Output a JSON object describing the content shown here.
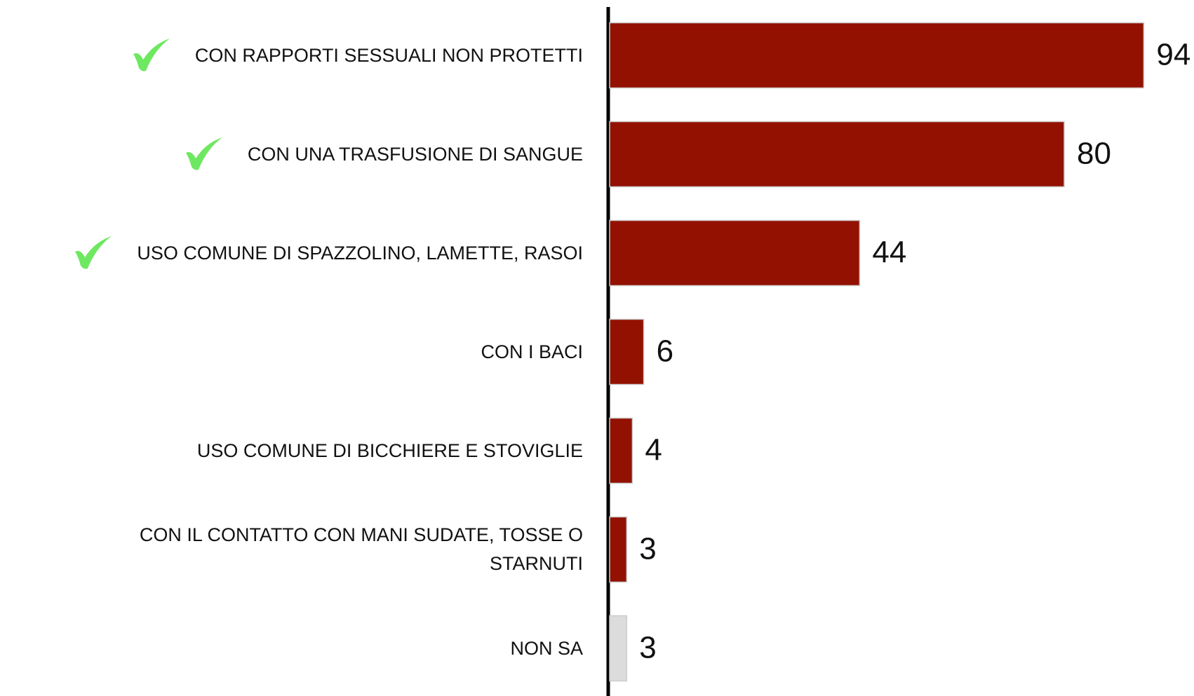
{
  "chart_data": {
    "type": "hbar",
    "categories": [
      "CON RAPPORTI SESSUALI NON PROTETTI",
      "CON UNA TRASFUSIONE DI SANGUE",
      "USO COMUNE DI SPAZZOLINO, LAMETTE, RASOI",
      "CON I BACI",
      "USO COMUNE DI BICCHIERE E STOVIGLIE",
      "CON IL CONTATTO CON MANI SUDATE, TOSSE O STARNUTI",
      "NON SA"
    ],
    "values": [
      94,
      80,
      44,
      6,
      4,
      3,
      3
    ],
    "colors": [
      "#931100",
      "#931100",
      "#931100",
      "#931100",
      "#931100",
      "#931100",
      "#dcdcdc"
    ],
    "checked": [
      true,
      true,
      true,
      false,
      false,
      false,
      false
    ],
    "check_color": "#6ee860",
    "xlim": [
      0,
      100
    ]
  }
}
